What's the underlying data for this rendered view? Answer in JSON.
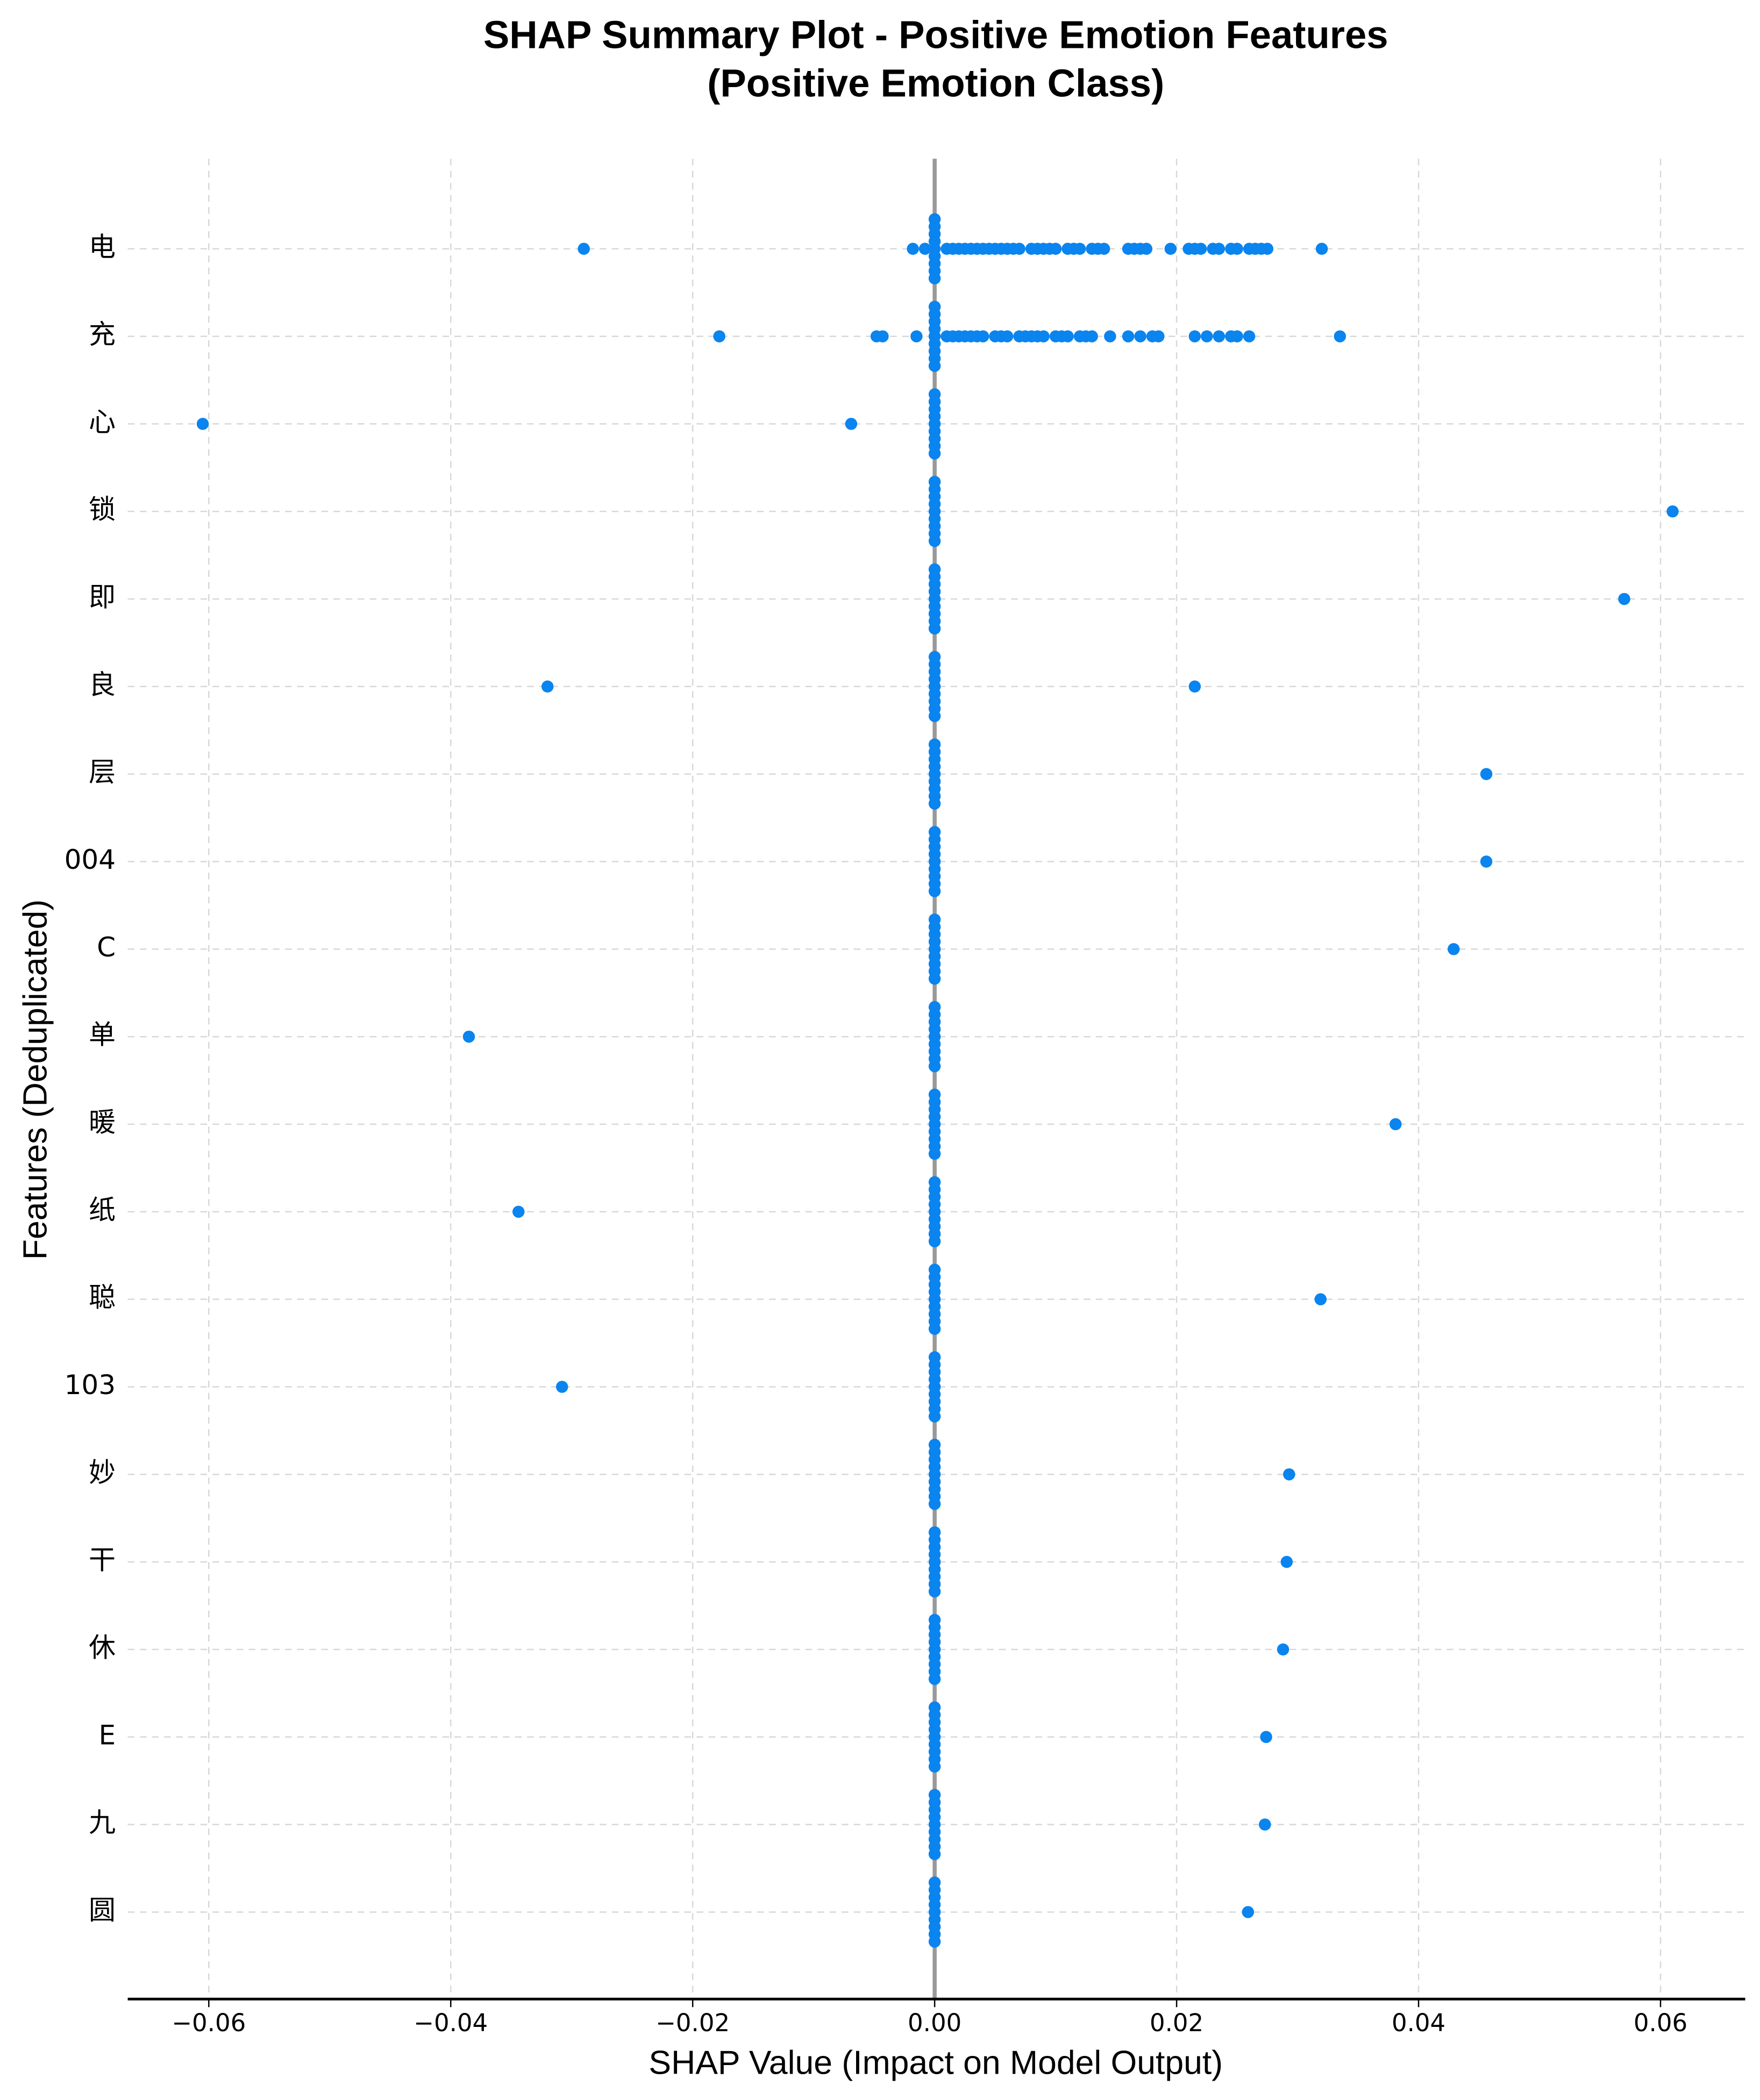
{
  "chart_data": {
    "type": "scatter",
    "title": "SHAP Summary Plot - Positive Emotion Features",
    "subtitle": "(Positive Emotion Class)",
    "x_label": "SHAP Value (Impact on Model Output)",
    "y_label": "Features (Deduplicated)",
    "color": "#0a84ef",
    "grid": true,
    "xlim": [
      -0.0667,
      0.067
    ],
    "xticks": [
      {
        "value": -0.06,
        "label": "−0.06"
      },
      {
        "value": -0.04,
        "label": "−0.04"
      },
      {
        "value": -0.02,
        "label": "−0.02"
      },
      {
        "value": 0,
        "label": "0.00"
      },
      0.02,
      0.04,
      0.06
    ],
    "categories": [
      "电",
      "充",
      "心",
      "锁",
      "即",
      "良",
      "层",
      "004",
      "C",
      "单",
      "暖",
      "纸",
      "聪",
      "103",
      "妙",
      "干",
      "休",
      "E",
      "九",
      "圆"
    ],
    "values": [
      [
        0,
        0,
        0,
        0,
        0,
        0,
        0,
        0,
        0,
        -0.029,
        -0.0018,
        -0.0008,
        0.001,
        0.0015,
        0.002,
        0.0025,
        0.003,
        0.0035,
        0.004,
        0.0045,
        0.005,
        0.0055,
        0.006,
        0.0065,
        0.007,
        0.008,
        0.0085,
        0.009,
        0.0095,
        0.01,
        0.011,
        0.0115,
        0.012,
        0.013,
        0.0135,
        0.014,
        0.016,
        0.0165,
        0.017,
        0.0175,
        0.0195,
        0.021,
        0.0215,
        0.022,
        0.023,
        0.0235,
        0.0245,
        0.025,
        0.026,
        0.0265,
        0.027,
        0.0275,
        0.032
      ],
      [
        0,
        0,
        0,
        0,
        0,
        0,
        0,
        0,
        0,
        -0.0178,
        -0.0048,
        -0.0043,
        -0.0015,
        0.001,
        0.0015,
        0.002,
        0.0025,
        0.003,
        0.0035,
        0.004,
        0.005,
        0.0055,
        0.006,
        0.007,
        0.0075,
        0.008,
        0.0085,
        0.009,
        0.01,
        0.0105,
        0.011,
        0.012,
        0.0125,
        0.013,
        0.0145,
        0.016,
        0.017,
        0.018,
        0.0185,
        0.0215,
        0.0225,
        0.0235,
        0.0245,
        0.025,
        0.026,
        0.0335
      ],
      [
        0,
        0,
        0,
        0,
        0,
        0,
        0,
        0,
        0,
        -0.0605,
        -0.0069
      ],
      [
        0,
        0,
        0,
        0,
        0,
        0,
        0,
        0,
        0,
        0.061
      ],
      [
        0,
        0,
        0,
        0,
        0,
        0,
        0,
        0,
        0,
        0.057
      ],
      [
        0,
        0,
        0,
        0,
        0,
        0,
        0,
        0,
        0,
        -0.032,
        0.0215
      ],
      [
        0,
        0,
        0,
        0,
        0,
        0,
        0,
        0,
        0,
        0.0456
      ],
      [
        0,
        0,
        0,
        0,
        0,
        0,
        0,
        0,
        0,
        0.0456
      ],
      [
        0,
        0,
        0,
        0,
        0,
        0,
        0,
        0,
        0,
        0.0429
      ],
      [
        0,
        0,
        0,
        0,
        0,
        0,
        0,
        0,
        0,
        -0.0385
      ],
      [
        0,
        0,
        0,
        0,
        0,
        0,
        0,
        0,
        0,
        0.0381
      ],
      [
        0,
        0,
        0,
        0,
        0,
        0,
        0,
        0,
        0,
        -0.0344
      ],
      [
        0,
        0,
        0,
        0,
        0,
        0,
        0,
        0,
        0,
        0.0319
      ],
      [
        0,
        0,
        0,
        0,
        0,
        0,
        0,
        0,
        0,
        -0.0308
      ],
      [
        0,
        0,
        0,
        0,
        0,
        0,
        0,
        0,
        0,
        0.0293
      ],
      [
        0,
        0,
        0,
        0,
        0,
        0,
        0,
        0,
        0,
        0.0291
      ],
      [
        0,
        0,
        0,
        0,
        0,
        0,
        0,
        0,
        0,
        0.0288
      ],
      [
        0,
        0,
        0,
        0,
        0,
        0,
        0,
        0,
        0,
        0.0274
      ],
      [
        0,
        0,
        0,
        0,
        0,
        0,
        0,
        0,
        0,
        0.0273
      ],
      [
        0,
        0,
        0,
        0,
        0,
        0,
        0,
        0,
        0,
        0.0259
      ]
    ]
  }
}
